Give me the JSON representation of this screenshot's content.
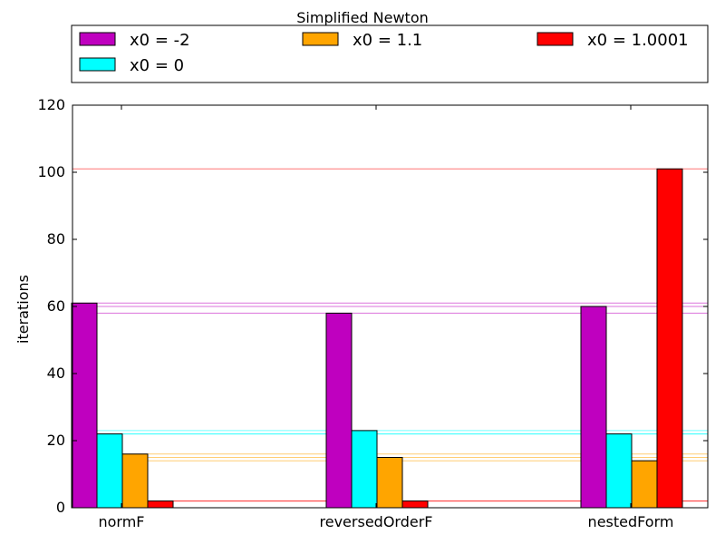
{
  "chart_data": {
    "type": "bar",
    "title": "Simplified Newton",
    "xlabel": "",
    "ylabel": "iterations",
    "ylim": [
      0,
      120
    ],
    "yticks": [
      0,
      20,
      40,
      60,
      80,
      100,
      120
    ],
    "categories": [
      "normF",
      "reversedOrderF",
      "nestedForm"
    ],
    "legend_location": "top",
    "series": [
      {
        "name": "x0 = -2",
        "color": "#bf00bf",
        "values": [
          61,
          58,
          60
        ]
      },
      {
        "name": "x0 = 0",
        "color": "#00ffff",
        "values": [
          22,
          23,
          22
        ]
      },
      {
        "name": "x0 = 1.1",
        "color": "#ffa500",
        "values": [
          16,
          15,
          14
        ]
      },
      {
        "name": "x0 = 1.0001",
        "color": "#ff0000",
        "values": [
          2,
          2,
          101
        ]
      }
    ]
  }
}
